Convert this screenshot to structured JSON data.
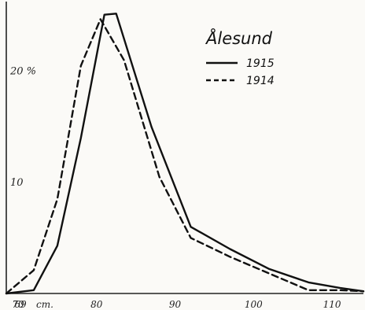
{
  "chart_data": {
    "type": "line",
    "x_unit_label": "cm.",
    "ylim": [
      0,
      26
    ],
    "xlim": [
      68.5,
      114
    ],
    "x_tick_labels": [
      "69",
      "70",
      "80",
      "90",
      "100",
      "110"
    ],
    "y_tick_labels": [
      "10",
      "20 %"
    ],
    "legend": {
      "title": "Ålesund",
      "placement": "top-right"
    },
    "grid": false,
    "series": [
      {
        "name": "1915",
        "style": "solid",
        "color": "#111111",
        "x": [
          68.5,
          72,
          75,
          78,
          81,
          82.5,
          87,
          92,
          97,
          102,
          107,
          111,
          114
        ],
        "y": [
          0,
          0.3,
          4.3,
          14,
          25.1,
          25.2,
          15,
          6,
          4,
          2.2,
          1,
          0.5,
          0.2
        ]
      },
      {
        "name": "1914",
        "style": "dashed",
        "color": "#111111",
        "x": [
          68.5,
          72,
          75,
          78,
          80.5,
          83.5,
          88,
          92,
          97,
          102,
          107,
          111,
          114
        ],
        "y": [
          0,
          2.1,
          8.5,
          20.5,
          24.7,
          21,
          10.5,
          5,
          3.3,
          1.8,
          0.3,
          0.3,
          0.2
        ]
      }
    ]
  }
}
